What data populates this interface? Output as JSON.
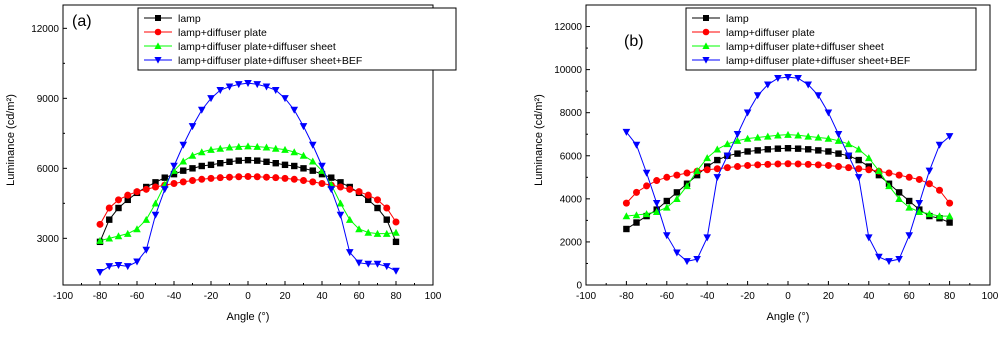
{
  "chart_data": [
    {
      "type": "line",
      "panel_label": "(a)",
      "xlabel": "Angle (°)",
      "ylabel": "Luminance (cd/m²)",
      "xlim": [
        -100,
        100
      ],
      "ylim": [
        1000,
        13000
      ],
      "xticks": [
        -100,
        -80,
        -60,
        -40,
        -20,
        0,
        20,
        40,
        60,
        80,
        100
      ],
      "yticks": [
        3000,
        6000,
        9000,
        12000
      ],
      "grid": false,
      "legend_position": "top-center",
      "series": [
        {
          "name": "lamp",
          "color": "#000000",
          "marker": "square",
          "x": [
            -80,
            -75,
            -70,
            -65,
            -60,
            -55,
            -50,
            -45,
            -40,
            -35,
            -30,
            -25,
            -20,
            -15,
            -10,
            -5,
            0,
            5,
            10,
            15,
            20,
            25,
            30,
            35,
            40,
            45,
            50,
            55,
            60,
            65,
            70,
            75,
            80
          ],
          "y": [
            2850,
            3800,
            4300,
            4650,
            4950,
            5200,
            5400,
            5600,
            5750,
            5900,
            6000,
            6100,
            6150,
            6220,
            6280,
            6330,
            6350,
            6330,
            6280,
            6220,
            6150,
            6100,
            6000,
            5900,
            5750,
            5600,
            5400,
            5200,
            4950,
            4650,
            4300,
            3800,
            2850
          ]
        },
        {
          "name": "lamp+diffuser plate",
          "color": "#ff0000",
          "marker": "circle",
          "x": [
            -80,
            -75,
            -70,
            -65,
            -60,
            -55,
            -50,
            -45,
            -40,
            -35,
            -30,
            -25,
            -20,
            -15,
            -10,
            -5,
            0,
            5,
            10,
            15,
            20,
            25,
            30,
            35,
            40,
            45,
            50,
            55,
            60,
            65,
            70,
            75,
            80
          ],
          "y": [
            3600,
            4300,
            4650,
            4850,
            5000,
            5100,
            5200,
            5280,
            5350,
            5420,
            5480,
            5530,
            5570,
            5600,
            5620,
            5640,
            5650,
            5640,
            5620,
            5600,
            5570,
            5530,
            5480,
            5420,
            5350,
            5280,
            5200,
            5100,
            5000,
            4850,
            4650,
            4300,
            3700
          ]
        },
        {
          "name": "lamp+diffuser plate+diffuser sheet",
          "color": "#00ff00",
          "marker": "triangle-up",
          "x": [
            -80,
            -75,
            -70,
            -65,
            -60,
            -55,
            -50,
            -45,
            -40,
            -35,
            -30,
            -25,
            -20,
            -15,
            -10,
            -5,
            0,
            5,
            10,
            15,
            20,
            25,
            30,
            35,
            40,
            45,
            50,
            55,
            60,
            65,
            70,
            75,
            80
          ],
          "y": [
            2900,
            3000,
            3100,
            3200,
            3400,
            3800,
            4500,
            5300,
            5900,
            6300,
            6550,
            6700,
            6800,
            6850,
            6900,
            6930,
            6950,
            6930,
            6900,
            6850,
            6800,
            6700,
            6550,
            6300,
            5900,
            5300,
            4500,
            3800,
            3400,
            3250,
            3200,
            3200,
            3250
          ]
        },
        {
          "name": "lamp+diffuser plate+diffuser sheet+BEF",
          "color": "#0000ff",
          "marker": "triangle-down",
          "x": [
            -80,
            -75,
            -70,
            -65,
            -60,
            -55,
            -50,
            -45,
            -40,
            -35,
            -30,
            -25,
            -20,
            -15,
            -10,
            -5,
            0,
            5,
            10,
            15,
            20,
            25,
            30,
            35,
            40,
            45,
            50,
            55,
            60,
            65,
            70,
            75,
            80
          ],
          "y": [
            1550,
            1800,
            1850,
            1800,
            2000,
            2500,
            4000,
            5100,
            6100,
            7000,
            7800,
            8500,
            9000,
            9350,
            9500,
            9600,
            9650,
            9600,
            9500,
            9350,
            9000,
            8500,
            7800,
            7000,
            6100,
            5100,
            4000,
            2400,
            1950,
            1900,
            1900,
            1800,
            1600
          ]
        }
      ]
    },
    {
      "type": "line",
      "panel_label": "(b)",
      "xlabel": "Angle (°)",
      "ylabel": "Luminance (cd/m²)",
      "xlim": [
        -100,
        100
      ],
      "ylim": [
        0,
        13000
      ],
      "xticks": [
        -100,
        -80,
        -60,
        -40,
        -20,
        0,
        20,
        40,
        60,
        80,
        100
      ],
      "yticks": [
        0,
        2000,
        4000,
        6000,
        8000,
        10000,
        12000
      ],
      "grid": false,
      "legend_position": "top-center",
      "series": [
        {
          "name": "lamp",
          "color": "#000000",
          "marker": "square",
          "x": [
            -80,
            -75,
            -70,
            -65,
            -60,
            -55,
            -50,
            -45,
            -40,
            -35,
            -30,
            -25,
            -20,
            -15,
            -10,
            -5,
            0,
            5,
            10,
            15,
            20,
            25,
            30,
            35,
            40,
            45,
            50,
            55,
            60,
            65,
            70,
            75,
            80
          ],
          "y": [
            2600,
            2900,
            3200,
            3500,
            3900,
            4300,
            4700,
            5100,
            5500,
            5800,
            6000,
            6100,
            6200,
            6250,
            6300,
            6330,
            6350,
            6330,
            6300,
            6250,
            6200,
            6100,
            6000,
            5800,
            5500,
            5100,
            4700,
            4300,
            3900,
            3500,
            3200,
            3100,
            2900
          ]
        },
        {
          "name": "lamp+diffuser plate",
          "color": "#ff0000",
          "marker": "circle",
          "x": [
            -80,
            -75,
            -70,
            -65,
            -60,
            -55,
            -50,
            -45,
            -40,
            -35,
            -30,
            -25,
            -20,
            -15,
            -10,
            -5,
            0,
            5,
            10,
            15,
            20,
            25,
            30,
            35,
            40,
            45,
            50,
            55,
            60,
            65,
            70,
            75,
            80
          ],
          "y": [
            3800,
            4300,
            4600,
            4850,
            5000,
            5100,
            5200,
            5280,
            5350,
            5400,
            5450,
            5500,
            5550,
            5580,
            5600,
            5620,
            5630,
            5620,
            5600,
            5580,
            5550,
            5500,
            5450,
            5400,
            5350,
            5280,
            5200,
            5100,
            5000,
            4900,
            4700,
            4400,
            3800
          ]
        },
        {
          "name": "lamp+diffuser plate+diffuser sheet",
          "color": "#00ff00",
          "marker": "triangle-up",
          "x": [
            -80,
            -75,
            -70,
            -65,
            -60,
            -55,
            -50,
            -45,
            -40,
            -35,
            -30,
            -25,
            -20,
            -15,
            -10,
            -5,
            0,
            5,
            10,
            15,
            20,
            25,
            30,
            35,
            40,
            45,
            50,
            55,
            60,
            65,
            70,
            75,
            80
          ],
          "y": [
            3200,
            3250,
            3300,
            3400,
            3600,
            4000,
            4600,
            5300,
            5900,
            6300,
            6550,
            6700,
            6800,
            6850,
            6900,
            6950,
            6980,
            6950,
            6900,
            6850,
            6800,
            6700,
            6550,
            6300,
            5900,
            5300,
            4600,
            4000,
            3600,
            3400,
            3300,
            3200,
            3200
          ]
        },
        {
          "name": "lamp+diffuser plate+diffuser sheet+BEF",
          "color": "#0000ff",
          "marker": "triangle-down",
          "x": [
            -80,
            -75,
            -70,
            -65,
            -60,
            -55,
            -50,
            -45,
            -40,
            -35,
            -30,
            -25,
            -20,
            -15,
            -10,
            -5,
            0,
            5,
            10,
            15,
            20,
            25,
            30,
            35,
            40,
            45,
            50,
            55,
            60,
            65,
            70,
            75,
            80
          ],
          "y": [
            7100,
            6500,
            5200,
            3800,
            2300,
            1500,
            1100,
            1200,
            2200,
            5000,
            6000,
            7000,
            8000,
            8800,
            9300,
            9600,
            9650,
            9600,
            9300,
            8800,
            8000,
            7000,
            6000,
            5000,
            2200,
            1300,
            1100,
            1200,
            2300,
            3800,
            5300,
            6500,
            6900
          ]
        }
      ]
    }
  ]
}
